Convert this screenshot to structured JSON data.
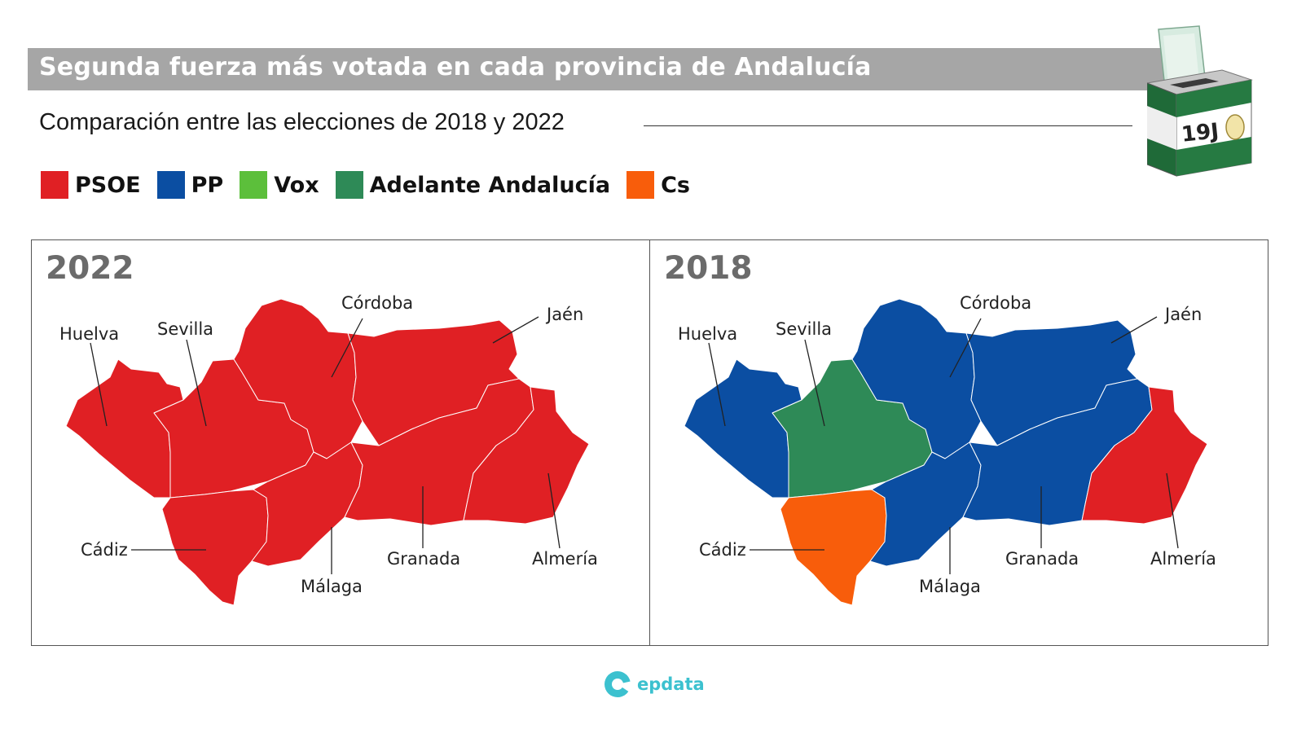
{
  "title": "Segunda fuerza más votada en cada provincia de Andalucía",
  "subtitle": "Comparación entre las elecciones de 2018 y 2022",
  "ballot_box_label": "19J",
  "legend": [
    {
      "label": "PSOE",
      "color": "#e02024"
    },
    {
      "label": "PP",
      "color": "#0b4ea2"
    },
    {
      "label": "Vox",
      "color": "#5cbf3b"
    },
    {
      "label": "Adelante Andalucía",
      "color": "#2e8a57"
    },
    {
      "label": "Cs",
      "color": "#f85d0b"
    }
  ],
  "maps": [
    {
      "year": "2022",
      "provinces": {
        "Huelva": "PSOE",
        "Sevilla": "PSOE",
        "Córdoba": "PSOE",
        "Jaén": "PSOE",
        "Cádiz": "PSOE",
        "Málaga": "PSOE",
        "Granada": "PSOE",
        "Almería": "PSOE"
      }
    },
    {
      "year": "2018",
      "provinces": {
        "Huelva": "PP",
        "Sevilla": "Adelante Andalucía",
        "Córdoba": "PP",
        "Jaén": "PP",
        "Cádiz": "Cs",
        "Málaga": "PP",
        "Granada": "PP",
        "Almería": "PSOE"
      }
    }
  ],
  "province_labels": {
    "huelva": "Huelva",
    "sevilla": "Sevilla",
    "cordoba": "Córdoba",
    "jaen": "Jaén",
    "cadiz": "Cádiz",
    "malaga": "Málaga",
    "granada": "Granada",
    "almeria": "Almería"
  },
  "brand": "epdata"
}
